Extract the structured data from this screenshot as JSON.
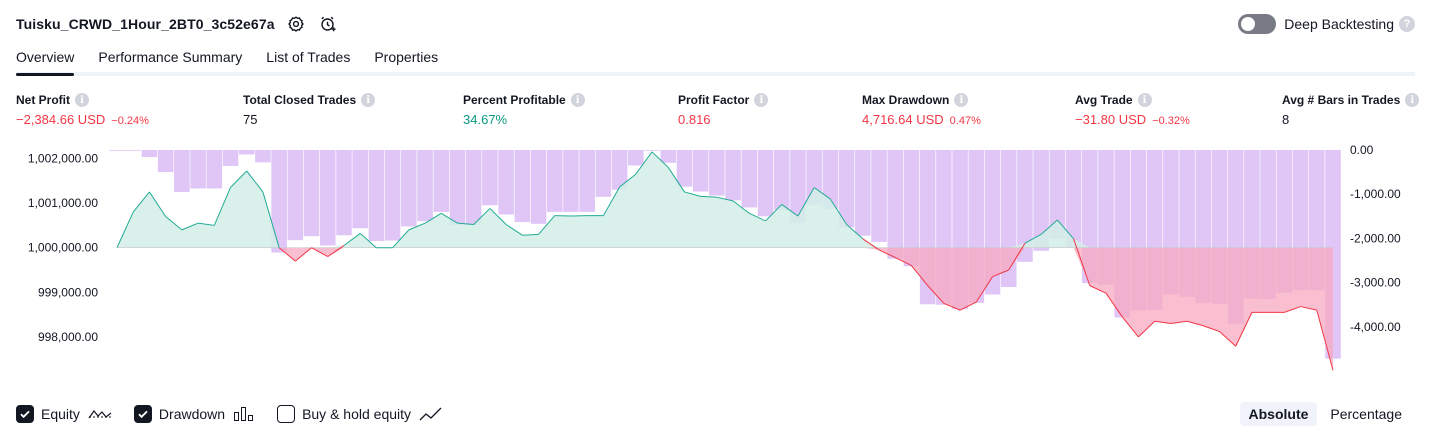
{
  "header": {
    "strategy_name": "Tuisku_CRWD_1Hour_2BT0_3c52e67a",
    "deep_backtesting_label": "Deep Backtesting",
    "deep_backtesting_enabled": false,
    "icons": [
      "settings-icon",
      "alert-add-icon",
      "help-icon"
    ]
  },
  "tabs": [
    {
      "label": "Overview",
      "active": true
    },
    {
      "label": "Performance Summary",
      "active": false
    },
    {
      "label": "List of Trades",
      "active": false
    },
    {
      "label": "Properties",
      "active": false
    }
  ],
  "metrics": [
    {
      "label": "Net Profit",
      "value": "−2,384.66 USD",
      "pct": "−0.24%",
      "tone": "neg"
    },
    {
      "label": "Total Closed Trades",
      "value": "75",
      "pct": "",
      "tone": "neu"
    },
    {
      "label": "Percent Profitable",
      "value": "34.67%",
      "pct": "",
      "tone": "pos"
    },
    {
      "label": "Profit Factor",
      "value": "0.816",
      "pct": "",
      "tone": "neg"
    },
    {
      "label": "Max Drawdown",
      "value": "4,716.64 USD",
      "pct": "0.47%",
      "tone": "neg"
    },
    {
      "label": "Avg Trade",
      "value": "−31.80 USD",
      "pct": "−0.32%",
      "tone": "neg"
    },
    {
      "label": "Avg # Bars in Trades",
      "value": "8",
      "pct": "",
      "tone": "neu"
    }
  ],
  "legend": {
    "items": [
      {
        "label": "Equity",
        "checked": true,
        "icon": "equity-line-icon"
      },
      {
        "label": "Drawdown",
        "checked": true,
        "icon": "drawdown-bars-icon"
      },
      {
        "label": "Buy & hold equity",
        "checked": false,
        "icon": "buy-hold-line-icon"
      }
    ],
    "modes": [
      {
        "label": "Absolute",
        "active": true
      },
      {
        "label": "Percentage",
        "active": false
      }
    ]
  },
  "chart_data": {
    "type": "line",
    "x_ticks": [
      "1",
      "6",
      "11",
      "16",
      "21",
      "26",
      "31",
      "36",
      "41",
      "46",
      "51",
      "56",
      "61",
      "66",
      "71",
      "76"
    ],
    "left_axis": {
      "ticks": [
        "1,002,000.00",
        "1,001,000.00",
        "1,000,000.00",
        "999,000.00",
        "998,000.00"
      ],
      "baseline": 1000000
    },
    "right_axis": {
      "ticks": [
        "0.00",
        "-1,000.00",
        "-2,000.00",
        "-3,000.00",
        "-4,000.00"
      ]
    },
    "colors": {
      "equity_up_line": "#22ab94",
      "equity_up_fill": "#d4efe8",
      "equity_down_line": "#f23645",
      "equity_down_fill": "#f7a8bf",
      "drawdown_bar": "#dfc6f7"
    },
    "series": [
      {
        "name": "Equity",
        "x": [
          1,
          2,
          3,
          4,
          5,
          6,
          7,
          8,
          9,
          10,
          11,
          12,
          13,
          14,
          15,
          16,
          17,
          18,
          19,
          20,
          21,
          22,
          23,
          24,
          25,
          26,
          27,
          28,
          29,
          30,
          31,
          32,
          33,
          34,
          35,
          36,
          37,
          38,
          39,
          40,
          41,
          42,
          43,
          44,
          45,
          46,
          47,
          48,
          49,
          50,
          51,
          52,
          53,
          54,
          55,
          56,
          57,
          58,
          59,
          60,
          61,
          62,
          63,
          64,
          65,
          66,
          67,
          68,
          69,
          70,
          71,
          72,
          73,
          74,
          75,
          76
        ],
        "values": [
          1000000,
          1000800,
          1001250,
          1000700,
          1000400,
          1000550,
          1000500,
          1001350,
          1001720,
          1001250,
          1000000,
          999700,
          1000000,
          999800,
          1000050,
          1000320,
          1000000,
          1000000,
          1000400,
          1000550,
          1000770,
          1000550,
          1000520,
          1000880,
          1000520,
          1000280,
          1000300,
          1000720,
          1000710,
          1000720,
          1000720,
          1001360,
          1001650,
          1002150,
          1001800,
          1001250,
          1001150,
          1001130,
          1001050,
          1000770,
          1000600,
          1000970,
          1000710,
          1001350,
          1001090,
          1000520,
          1000200,
          999950,
          999780,
          999600,
          999150,
          998750,
          998600,
          998780,
          999350,
          999500,
          1000100,
          1000300,
          1000620,
          1000200,
          999150,
          998980,
          998450,
          998000,
          998350,
          998300,
          998350,
          998250,
          998120,
          997790,
          998550,
          998550,
          998550,
          998680,
          998600,
          997250
        ]
      },
      {
        "name": "Drawdown",
        "x": [
          1,
          2,
          3,
          4,
          5,
          6,
          7,
          8,
          9,
          10,
          11,
          12,
          13,
          14,
          15,
          16,
          17,
          18,
          19,
          20,
          21,
          22,
          23,
          24,
          25,
          26,
          27,
          28,
          29,
          30,
          31,
          32,
          33,
          34,
          35,
          36,
          37,
          38,
          39,
          40,
          41,
          42,
          43,
          44,
          45,
          46,
          47,
          48,
          49,
          50,
          51,
          52,
          53,
          54,
          55,
          56,
          57,
          58,
          59,
          60,
          61,
          62,
          63,
          64,
          65,
          66,
          67,
          68,
          69,
          70,
          71,
          72,
          73,
          74,
          75,
          76
        ],
        "values": [
          0,
          0,
          -160,
          -500,
          -950,
          -870,
          -870,
          -360,
          -100,
          -280,
          -2320,
          -2040,
          -1950,
          -2160,
          -1930,
          -1770,
          -2060,
          -2050,
          -1730,
          -1610,
          -1400,
          -1700,
          -1700,
          -1250,
          -1460,
          -1630,
          -1670,
          -1400,
          -1400,
          -1400,
          -1060,
          -900,
          -350,
          0,
          -290,
          -830,
          -940,
          -1030,
          -1140,
          -1300,
          -1500,
          -1360,
          -1650,
          -1240,
          -1330,
          -1750,
          -1940,
          -2080,
          -2460,
          -2630,
          -3490,
          -3500,
          -3600,
          -3460,
          -3270,
          -3100,
          -2530,
          -2280,
          -2010,
          -2200,
          -3010,
          -3050,
          -3790,
          -3630,
          -3620,
          -3270,
          -3320,
          -3460,
          -3480,
          -3930,
          -3360,
          -3370,
          -3230,
          -3170,
          -3170,
          -4720
        ]
      }
    ]
  }
}
